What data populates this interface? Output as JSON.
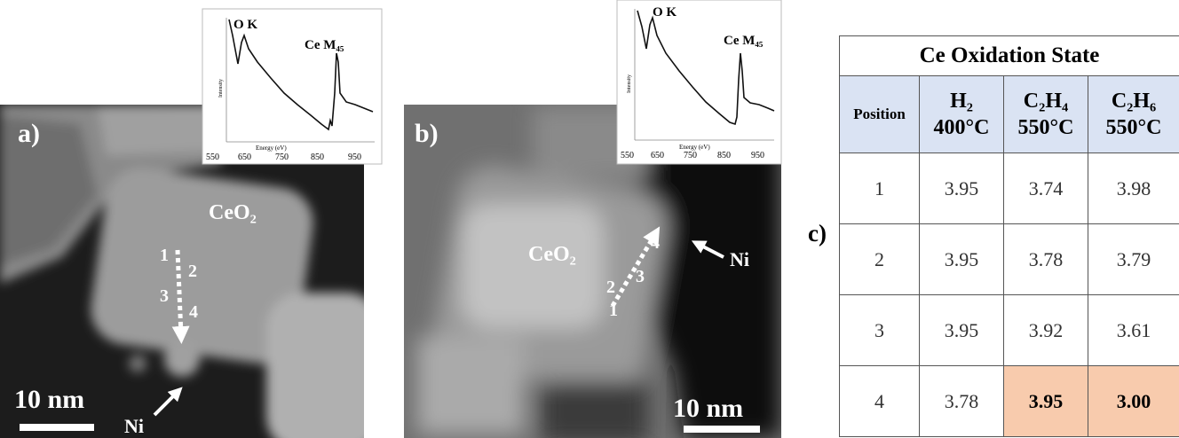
{
  "panel_a": {
    "label": "a)",
    "particle": "CeO₂",
    "points": [
      "1",
      "2",
      "3",
      "4"
    ],
    "scale": "10 nm",
    "metal": "Ni",
    "inset": {
      "peak1": "O K",
      "peak2": "Ce M₄₅",
      "ylabel": "Intensity",
      "xlabel": "Energy (eV)",
      "ticks": [
        "550",
        "650",
        "750",
        "850",
        "950"
      ]
    }
  },
  "panel_b": {
    "label": "b)",
    "particle": "CeO₂",
    "points": [
      "1",
      "2",
      "3",
      "4"
    ],
    "scale": "10 nm",
    "metal": "Ni",
    "inset": {
      "peak1": "O K",
      "peak2": "Ce M₄₅",
      "ylabel": "Intensity",
      "xlabel": "Energy (eV)",
      "ticks": [
        "550",
        "650",
        "750",
        "850",
        "950"
      ]
    }
  },
  "panel_c": {
    "label": "c)",
    "table": {
      "title": "Ce Oxidation State",
      "headers": [
        {
          "name": "Position"
        },
        {
          "name": "H₂",
          "temp": "400°C"
        },
        {
          "name": "C₂H₄",
          "temp": "550°C"
        },
        {
          "name": "C₂H₆",
          "temp": "550°C"
        }
      ],
      "rows": [
        [
          "1",
          "3.95",
          "3.74",
          "3.98"
        ],
        [
          "2",
          "3.95",
          "3.78",
          "3.79"
        ],
        [
          "3",
          "3.95",
          "3.92",
          "3.61"
        ],
        [
          "4",
          "3.78",
          "3.95",
          "3.00"
        ]
      ]
    }
  }
}
